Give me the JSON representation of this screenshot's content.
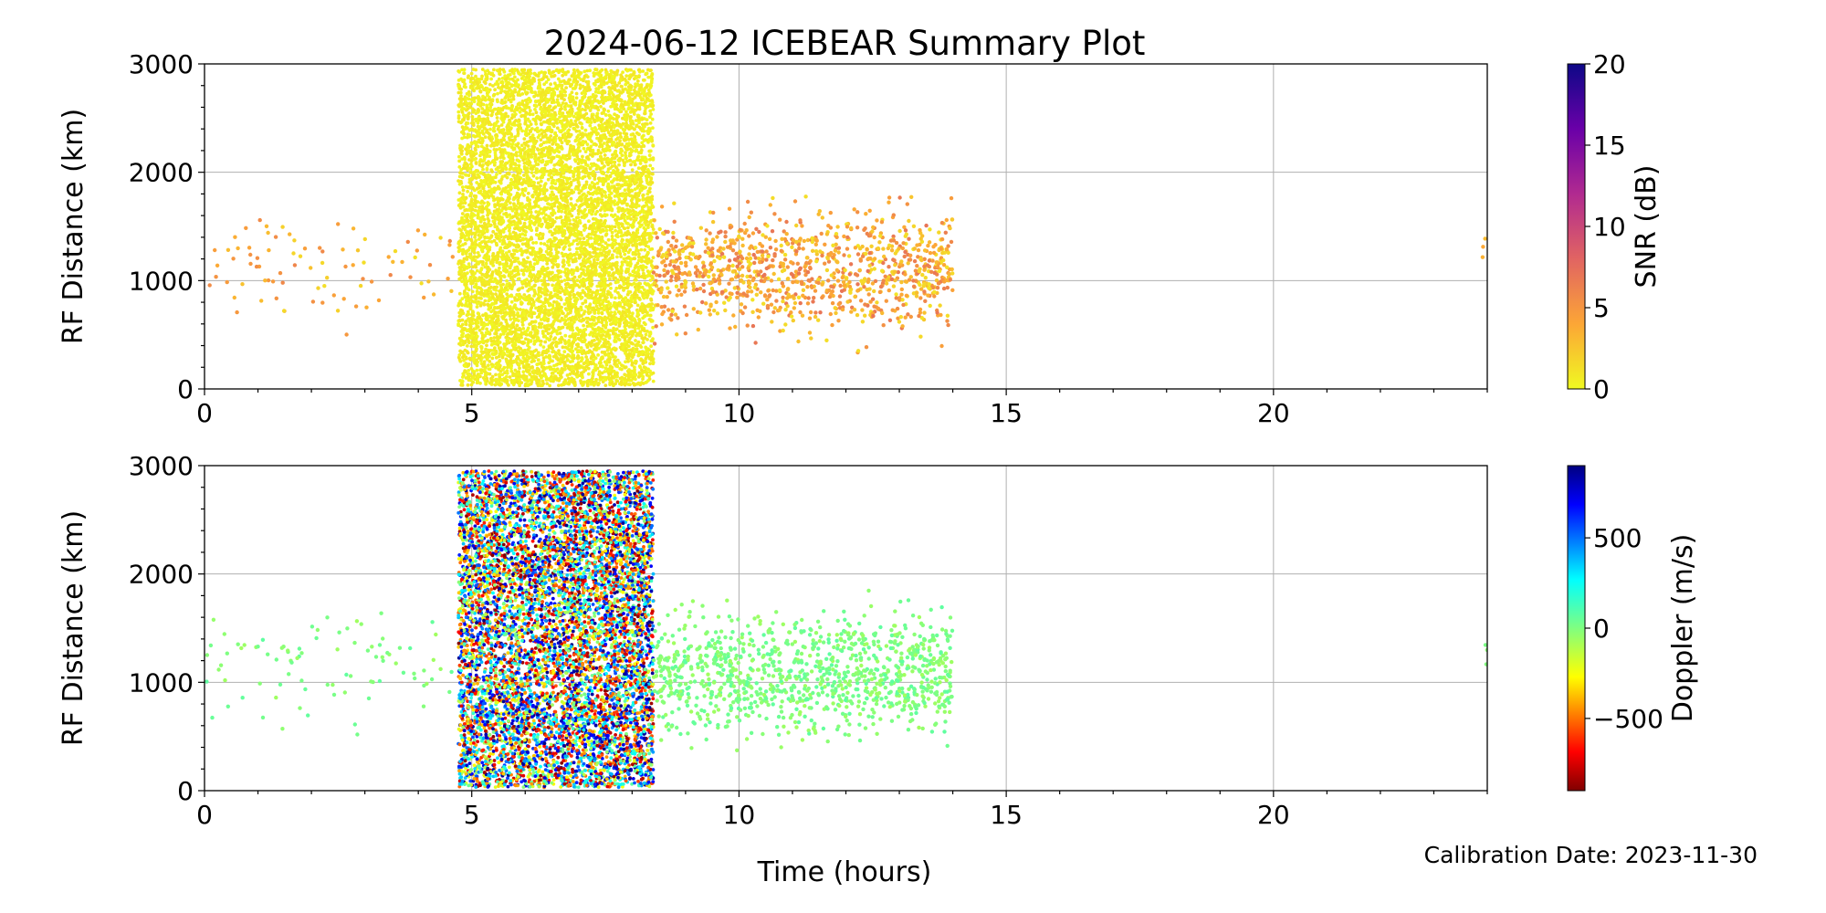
{
  "title": "2024-06-12 ICEBEAR Summary Plot",
  "calibration_label": "Calibration Date: 2023-11-30",
  "x_label": "Time (hours)",
  "colors": {
    "grid": "#b0b0b0",
    "axes": "#000000",
    "background": "#ffffff"
  },
  "chart_data": [
    {
      "type": "scatter",
      "panel": "top",
      "xlabel": "",
      "ylabel": "RF Distance (km)",
      "xlim": [
        0,
        24
      ],
      "ylim": [
        0,
        3000
      ],
      "x_ticks": [
        0,
        5,
        10,
        15,
        20
      ],
      "y_ticks": [
        0,
        1000,
        2000,
        3000
      ],
      "grid": true,
      "colorbar": {
        "label": "SNR (dB)",
        "range": [
          0,
          20
        ],
        "ticks": [
          0,
          5,
          10,
          15,
          20
        ],
        "tick_labels": [
          "0",
          "5",
          "10",
          "15",
          "20"
        ],
        "colormap": "plasma_r"
      },
      "point_groups": [
        {
          "x_range": [
            0,
            4.8
          ],
          "y_range": [
            300,
            1950
          ],
          "count": 90,
          "color_value_range": [
            1,
            6
          ]
        },
        {
          "x_range": [
            4.75,
            8.4
          ],
          "y_range": [
            30,
            2950
          ],
          "count": 8000,
          "color_value_range": [
            0,
            1
          ]
        },
        {
          "x_range": [
            8.4,
            14.0
          ],
          "y_range": [
            300,
            1900
          ],
          "count": 1100,
          "color_value_range": [
            1,
            7
          ]
        },
        {
          "x_range": [
            23.9,
            24.0
          ],
          "y_range": [
            750,
            1500
          ],
          "count": 3,
          "color_value_range": [
            2,
            4
          ]
        }
      ]
    },
    {
      "type": "scatter",
      "panel": "bottom",
      "xlabel": "Time (hours)",
      "ylabel": "RF Distance (km)",
      "xlim": [
        0,
        24
      ],
      "ylim": [
        0,
        3000
      ],
      "x_ticks": [
        0,
        5,
        10,
        15,
        20
      ],
      "y_ticks": [
        0,
        1000,
        2000,
        3000
      ],
      "grid": true,
      "colorbar": {
        "label": "Doppler (m/s)",
        "range": [
          -900,
          900
        ],
        "ticks": [
          -500,
          0,
          500
        ],
        "tick_labels": [
          "−500",
          "0",
          "500"
        ],
        "colormap": "jet_r"
      },
      "point_groups": [
        {
          "x_range": [
            0,
            4.8
          ],
          "y_range": [
            300,
            1950
          ],
          "count": 90,
          "color_value_range": [
            -60,
            60
          ]
        },
        {
          "x_range": [
            4.75,
            8.4
          ],
          "y_range": [
            30,
            2950
          ],
          "count": 8000,
          "color_value_range": [
            -900,
            900
          ]
        },
        {
          "x_range": [
            8.4,
            14.0
          ],
          "y_range": [
            300,
            1900
          ],
          "count": 1100,
          "color_value_range": [
            -60,
            60
          ]
        },
        {
          "x_range": [
            23.9,
            24.0
          ],
          "y_range": [
            750,
            1500
          ],
          "count": 3,
          "color_value_range": [
            -30,
            30
          ]
        }
      ]
    }
  ]
}
